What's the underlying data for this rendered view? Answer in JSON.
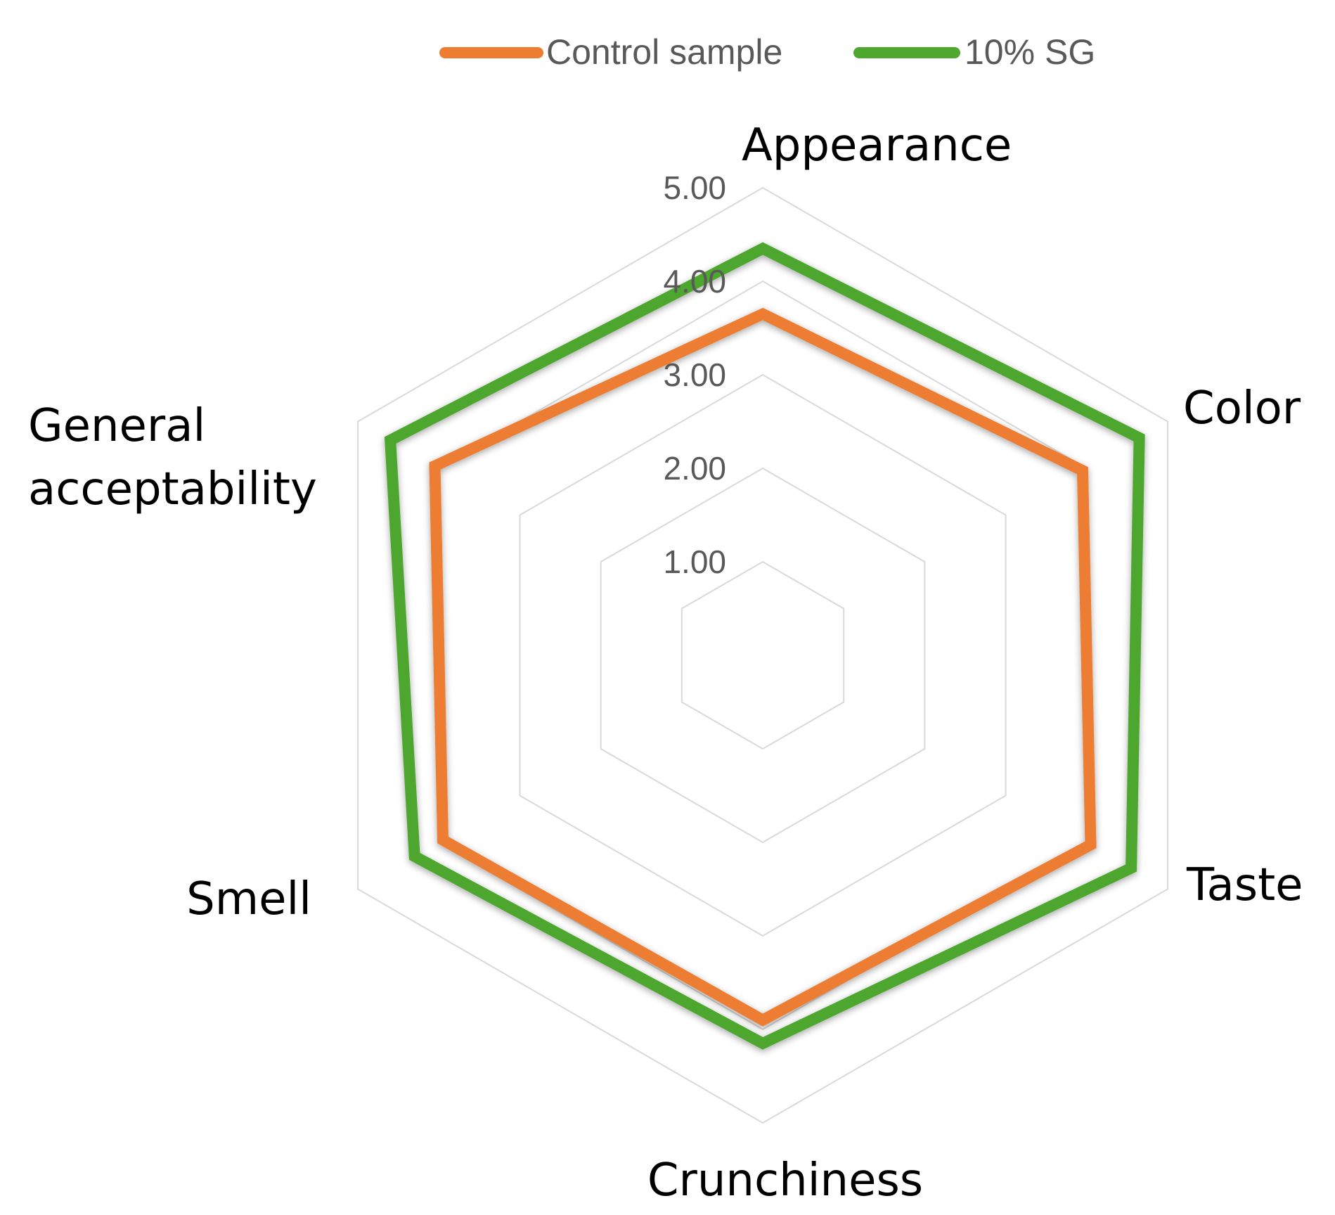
{
  "chart_data": {
    "type": "radar",
    "title": "",
    "categories": [
      "Appearance",
      "Color",
      "Taste",
      "Crunchiness",
      "Smell",
      "General acceptability"
    ],
    "category_lines": [
      [
        "Appearance"
      ],
      [
        "Color"
      ],
      [
        "Taste"
      ],
      [
        "Crunchiness"
      ],
      [
        "Smell"
      ],
      [
        "General",
        "acceptability"
      ]
    ],
    "radial_ticks": [
      "1.00",
      "2.00",
      "3.00",
      "4.00",
      "5.00"
    ],
    "rlim": [
      0,
      5
    ],
    "series": [
      {
        "name": "Control sample",
        "color": "#ED7D31",
        "values": [
          3.65,
          3.95,
          4.05,
          3.9,
          3.95,
          4.05
        ]
      },
      {
        "name": "10% SG",
        "color": "#4EA72E",
        "values": [
          4.35,
          4.65,
          4.55,
          4.15,
          4.3,
          4.6
        ]
      }
    ],
    "legend_position": "top-center"
  }
}
